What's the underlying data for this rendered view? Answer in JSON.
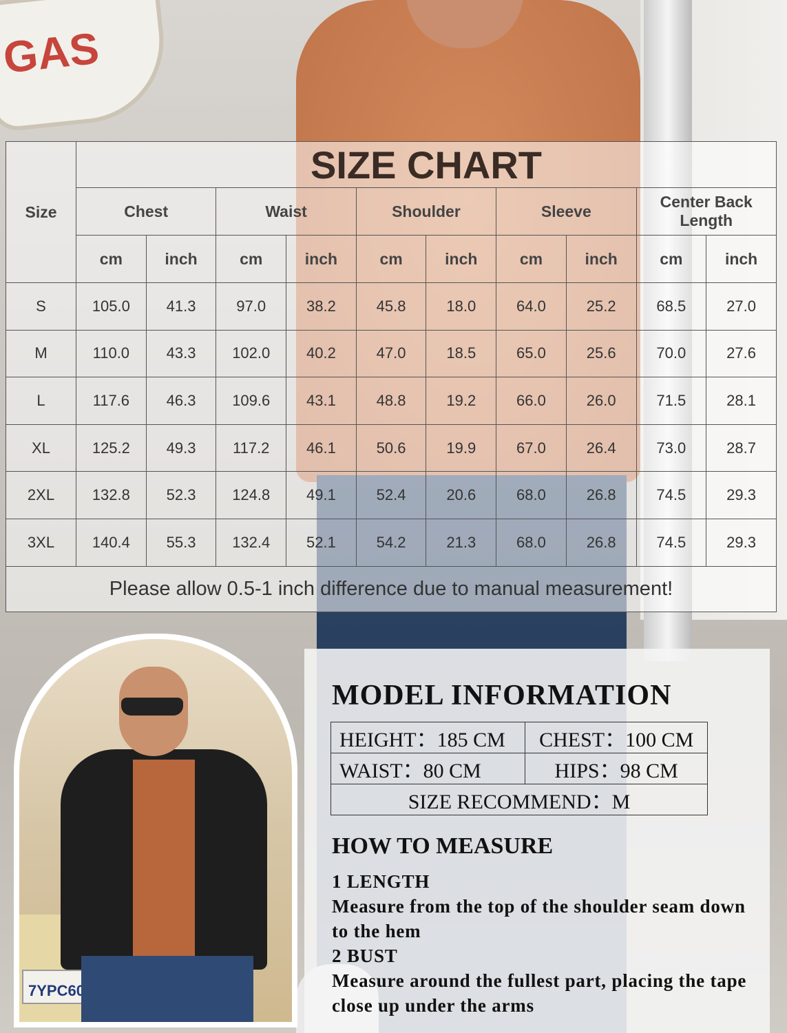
{
  "background": {
    "sign_text": "GAS",
    "plate_text": "7YPC60"
  },
  "size_chart": {
    "title": "SIZE CHART",
    "size_header": "Size",
    "measures": [
      "Chest",
      "Waist",
      "Shoulder",
      "Sleeve",
      "Center Back Length"
    ],
    "units": [
      "cm",
      "inch"
    ],
    "rows": [
      {
        "size": "S",
        "values": [
          "105.0",
          "41.3",
          "97.0",
          "38.2",
          "45.8",
          "18.0",
          "64.0",
          "25.2",
          "68.5",
          "27.0"
        ]
      },
      {
        "size": "M",
        "values": [
          "110.0",
          "43.3",
          "102.0",
          "40.2",
          "47.0",
          "18.5",
          "65.0",
          "25.6",
          "70.0",
          "27.6"
        ]
      },
      {
        "size": "L",
        "values": [
          "117.6",
          "46.3",
          "109.6",
          "43.1",
          "48.8",
          "19.2",
          "66.0",
          "26.0",
          "71.5",
          "28.1"
        ]
      },
      {
        "size": "XL",
        "values": [
          "125.2",
          "49.3",
          "117.2",
          "46.1",
          "50.6",
          "19.9",
          "67.0",
          "26.4",
          "73.0",
          "28.7"
        ]
      },
      {
        "size": "2XL",
        "values": [
          "132.8",
          "52.3",
          "124.8",
          "49.1",
          "52.4",
          "20.6",
          "68.0",
          "26.8",
          "74.5",
          "29.3"
        ]
      },
      {
        "size": "3XL",
        "values": [
          "140.4",
          "55.3",
          "132.4",
          "52.1",
          "54.2",
          "21.3",
          "68.0",
          "26.8",
          "74.5",
          "29.3"
        ]
      }
    ],
    "note": "Please allow 0.5-1 inch difference due to manual measurement!"
  },
  "model_info": {
    "title": "MODEL INFORMATION",
    "height": "HEIGHT：185 CM",
    "chest": "CHEST：100 CM",
    "waist": "WAIST：80   CM",
    "hips": "HIPS：98 CM",
    "size_recommend": "SIZE RECOMMEND：M"
  },
  "how_to_measure": {
    "title": "HOW TO MEASURE",
    "items": [
      {
        "heading": "1 LENGTH",
        "text": "Measure from the top of the shoulder seam down to the hem"
      },
      {
        "heading": "2 BUST",
        "text": "Measure around the fullest part, placing the tape close up under the arms"
      }
    ]
  }
}
